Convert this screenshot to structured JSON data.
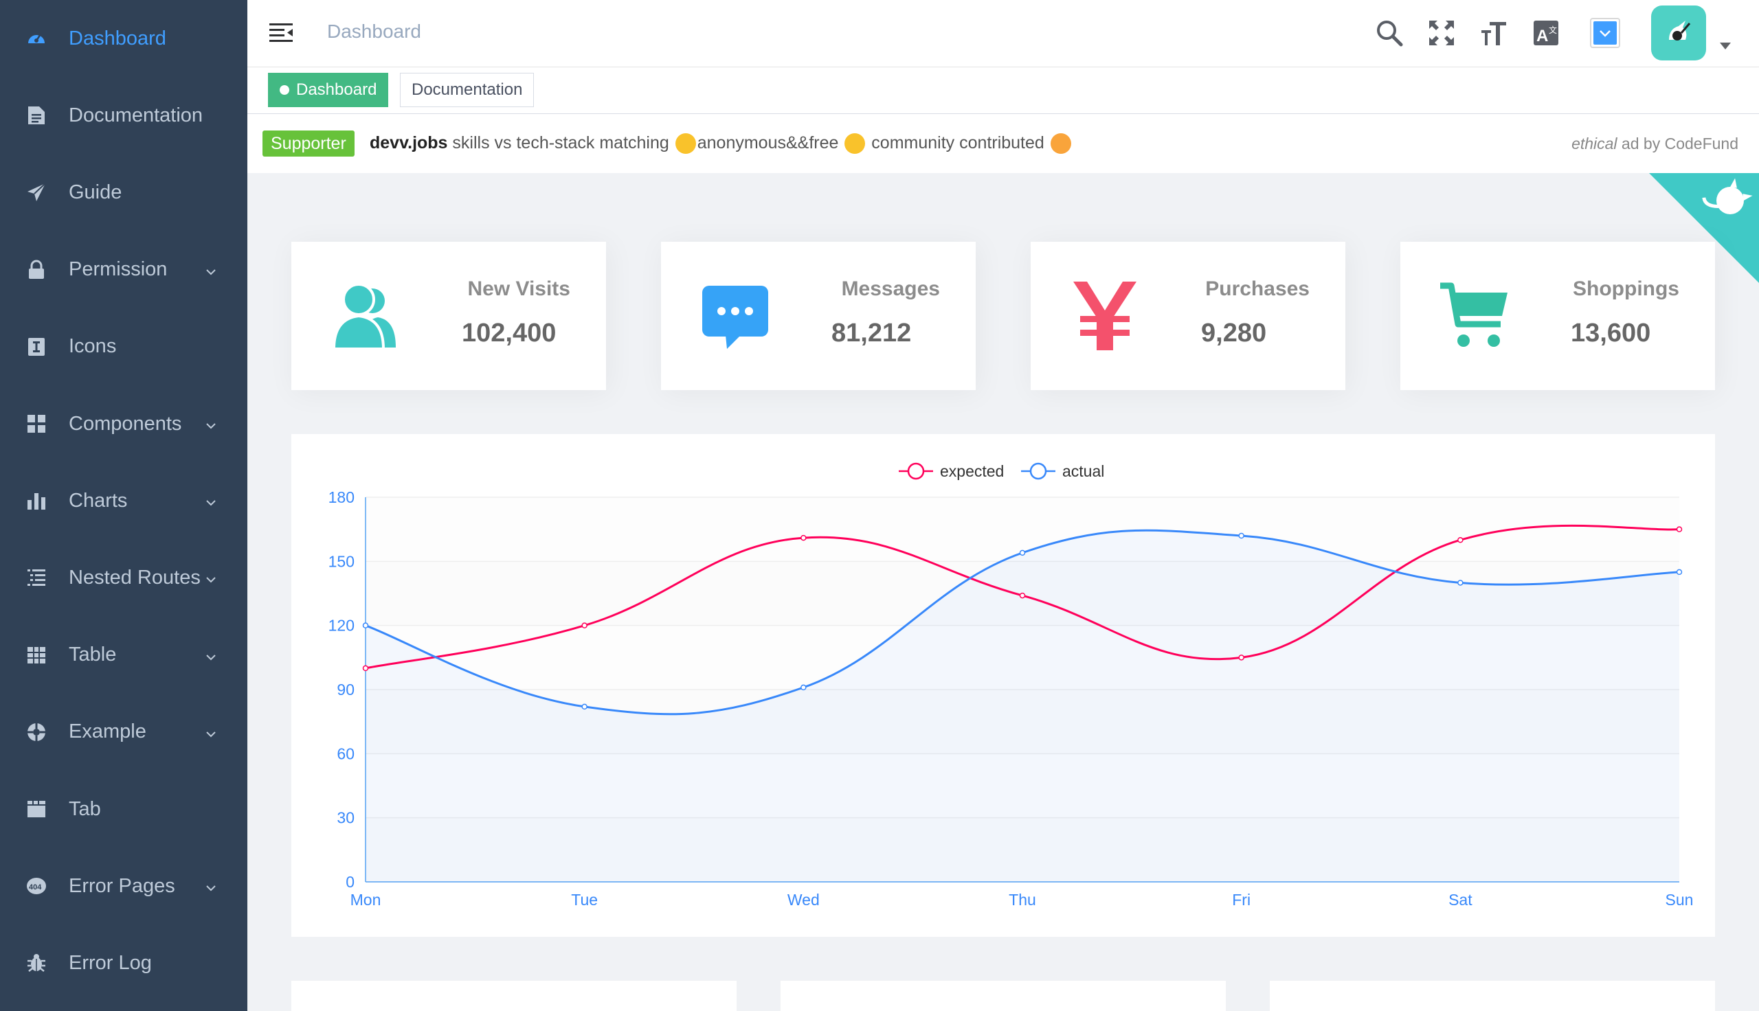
{
  "sidebar": {
    "items": [
      {
        "label": "Dashboard",
        "icon": "dashboard-icon",
        "active": true,
        "has_children": false
      },
      {
        "label": "Documentation",
        "icon": "documentation-icon",
        "active": false,
        "has_children": false
      },
      {
        "label": "Guide",
        "icon": "guide-icon",
        "active": false,
        "has_children": false
      },
      {
        "label": "Permission",
        "icon": "lock-icon",
        "active": false,
        "has_children": true
      },
      {
        "label": "Icons",
        "icon": "icons-icon",
        "active": false,
        "has_children": false
      },
      {
        "label": "Components",
        "icon": "components-icon",
        "active": false,
        "has_children": true
      },
      {
        "label": "Charts",
        "icon": "charts-icon",
        "active": false,
        "has_children": true
      },
      {
        "label": "Nested Routes",
        "icon": "nested-icon",
        "active": false,
        "has_children": true
      },
      {
        "label": "Table",
        "icon": "table-icon",
        "active": false,
        "has_children": true
      },
      {
        "label": "Example",
        "icon": "example-icon",
        "active": false,
        "has_children": true
      },
      {
        "label": "Tab",
        "icon": "tab-icon",
        "active": false,
        "has_children": false
      },
      {
        "label": "Error Pages",
        "icon": "404-icon",
        "active": false,
        "has_children": true
      },
      {
        "label": "Error Log",
        "icon": "bug-icon",
        "active": false,
        "has_children": false
      }
    ]
  },
  "navbar": {
    "breadcrumb": "Dashboard",
    "icons": [
      "search-icon",
      "fullscreen-icon",
      "font-size-icon",
      "language-icon",
      "theme-icon"
    ]
  },
  "tags": [
    {
      "label": "Dashboard",
      "active": true
    },
    {
      "label": "Documentation",
      "active": false
    }
  ],
  "ad": {
    "badge": "Supporter",
    "brand": "devv.jobs",
    "text1": " skills vs tech-stack matching ",
    "text2": "anonymous&&free ",
    "text3": " community contributed ",
    "by_italic": "ethical",
    "by_rest": " ad by CodeFund"
  },
  "cards": [
    {
      "title": "New Visits",
      "value": "102,400",
      "icon": "people-icon",
      "color": "#40c9c6"
    },
    {
      "title": "Messages",
      "value": "81,212",
      "icon": "message-icon",
      "color": "#36a3f7"
    },
    {
      "title": "Purchases",
      "value": "9,280",
      "icon": "money-icon",
      "color": "#f4516c"
    },
    {
      "title": "Shoppings",
      "value": "13,600",
      "icon": "shopping-icon",
      "color": "#34bfa3"
    }
  ],
  "chart_data": {
    "type": "line",
    "categories": [
      "Mon",
      "Tue",
      "Wed",
      "Thu",
      "Fri",
      "Sat",
      "Sun"
    ],
    "series": [
      {
        "name": "expected",
        "values": [
          100,
          120,
          161,
          134,
          105,
          160,
          165
        ],
        "color": "#ff005a"
      },
      {
        "name": "actual",
        "values": [
          120,
          82,
          91,
          154,
          162,
          140,
          145
        ],
        "color": "#3888fa"
      }
    ],
    "ylim": [
      0,
      180
    ],
    "yticks": [
      "0",
      "30",
      "60",
      "90",
      "120",
      "150",
      "180"
    ],
    "smooth": true,
    "legend_position": "top-center"
  },
  "colors": {
    "sidebar_bg": "#304156",
    "accent": "#409eff",
    "tag_active": "#42b983"
  }
}
